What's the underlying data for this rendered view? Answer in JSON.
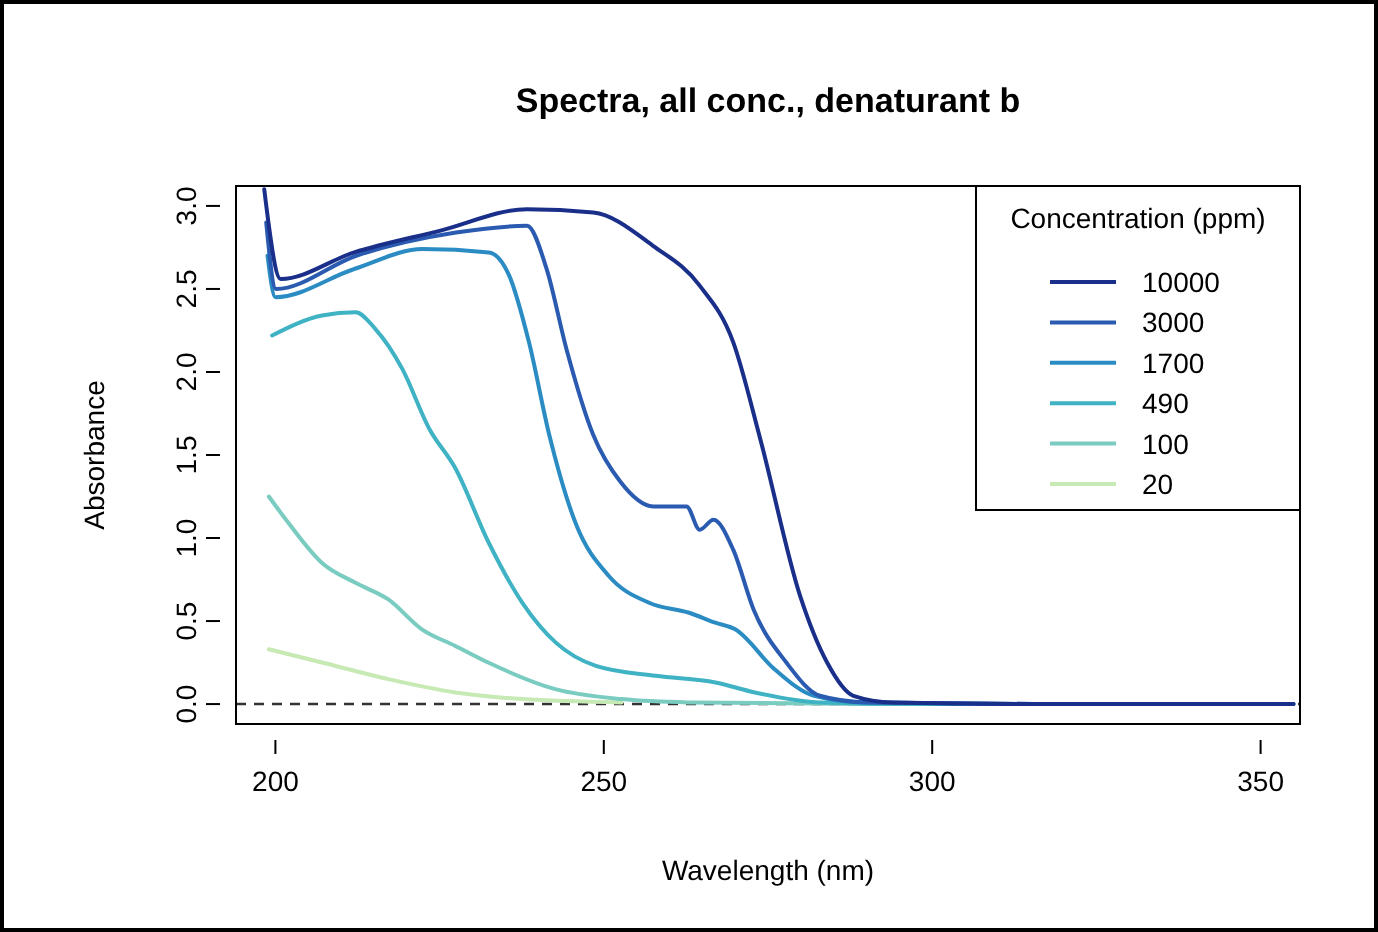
{
  "chart_data": {
    "type": "line",
    "title": "Spectra, all conc., denaturant b",
    "xlabel": "Wavelength (nm)",
    "ylabel": "Absorbance",
    "legend_title": "Concentration (ppm)",
    "legend": "top right",
    "grid": false,
    "line_style": "solid",
    "marker": "none",
    "xlim": [
      194,
      356
    ],
    "xticks": [
      200,
      250,
      300,
      350
    ],
    "ylim": [
      -0.12,
      3.12
    ],
    "yticks": [
      {
        "value": 0,
        "label": "0.0"
      },
      {
        "value": 0.5,
        "label": "0.5"
      },
      {
        "value": 1,
        "label": "1.0"
      },
      {
        "value": 1.5,
        "label": "1.5"
      },
      {
        "value": 2,
        "label": "2.0"
      },
      {
        "value": 2.5,
        "label": "2.5"
      },
      {
        "value": 3,
        "label": "3.0"
      }
    ],
    "ref_lines": [
      {
        "axis": "y",
        "value": 0,
        "color": "#333333",
        "line_style": "dashed"
      }
    ],
    "series": [
      {
        "name": "10000",
        "color": "#1a2f8a",
        "x": [
          198.3,
          200.8,
          212,
          225,
          238.3,
          248.4,
          257.5,
          264.6,
          269.7,
          273.8,
          279.9,
          284,
          288,
          294,
          320,
          355
        ],
        "values": [
          3.1,
          2.56,
          2.72,
          2.85,
          2.98,
          2.96,
          2.76,
          2.52,
          2.18,
          1.6,
          0.65,
          0.25,
          0.05,
          0.01,
          0,
          0
        ]
      },
      {
        "name": "3000",
        "color": "#2a5bb0",
        "x": [
          198.6,
          200.1,
          212.3,
          227.5,
          238.3,
          241.3,
          244.3,
          248.4,
          252.5,
          257.5,
          262.6,
          264.6,
          266.7,
          269.7,
          272.8,
          277.8,
          282.9,
          290,
          320,
          355
        ],
        "values": [
          2.9,
          2.5,
          2.7,
          2.84,
          2.88,
          2.62,
          2.14,
          1.62,
          1.34,
          1.19,
          1.19,
          1.05,
          1.11,
          0.93,
          0.57,
          0.25,
          0.05,
          0.01,
          0,
          0
        ]
      },
      {
        "name": "1700",
        "color": "#2b8cc4",
        "x": [
          198.8,
          200,
          212,
          222.4,
          232.5,
          235.6,
          238.6,
          241.7,
          245.7,
          250.8,
          256.9,
          263,
          267,
          270,
          276,
          282,
          290,
          320,
          355
        ],
        "values": [
          2.7,
          2.45,
          2.62,
          2.74,
          2.72,
          2.58,
          2.18,
          1.62,
          1.09,
          0.77,
          0.61,
          0.55,
          0.49,
          0.45,
          0.21,
          0.05,
          0.01,
          0,
          0
        ]
      },
      {
        "name": "490",
        "color": "#3fb2c4",
        "x": [
          199.5,
          207.1,
          212.2,
          215.2,
          219.3,
          223.4,
          227.4,
          232.5,
          237.6,
          242.7,
          248.8,
          257.9,
          267,
          273,
          283,
          300,
          355
        ],
        "values": [
          2.22,
          2.34,
          2.36,
          2.26,
          2.02,
          1.66,
          1.42,
          0.97,
          0.61,
          0.37,
          0.23,
          0.17,
          0.13,
          0.07,
          0.01,
          0,
          0
        ]
      },
      {
        "name": "100",
        "color": "#7accc0",
        "x": [
          199,
          202,
          207.1,
          212.2,
          217.2,
          222.3,
          227.4,
          232.4,
          242.6,
          252.7,
          262.8,
          290,
          355
        ],
        "values": [
          1.25,
          1.09,
          0.85,
          0.73,
          0.63,
          0.45,
          0.35,
          0.25,
          0.09,
          0.03,
          0.01,
          0,
          0
        ]
      },
      {
        "name": "20",
        "color": "#c7e9b4",
        "x": [
          199,
          207.1,
          217.2,
          227.4,
          237.6,
          252.7
        ],
        "values": [
          0.33,
          0.25,
          0.15,
          0.07,
          0.03,
          0.01
        ]
      }
    ]
  }
}
